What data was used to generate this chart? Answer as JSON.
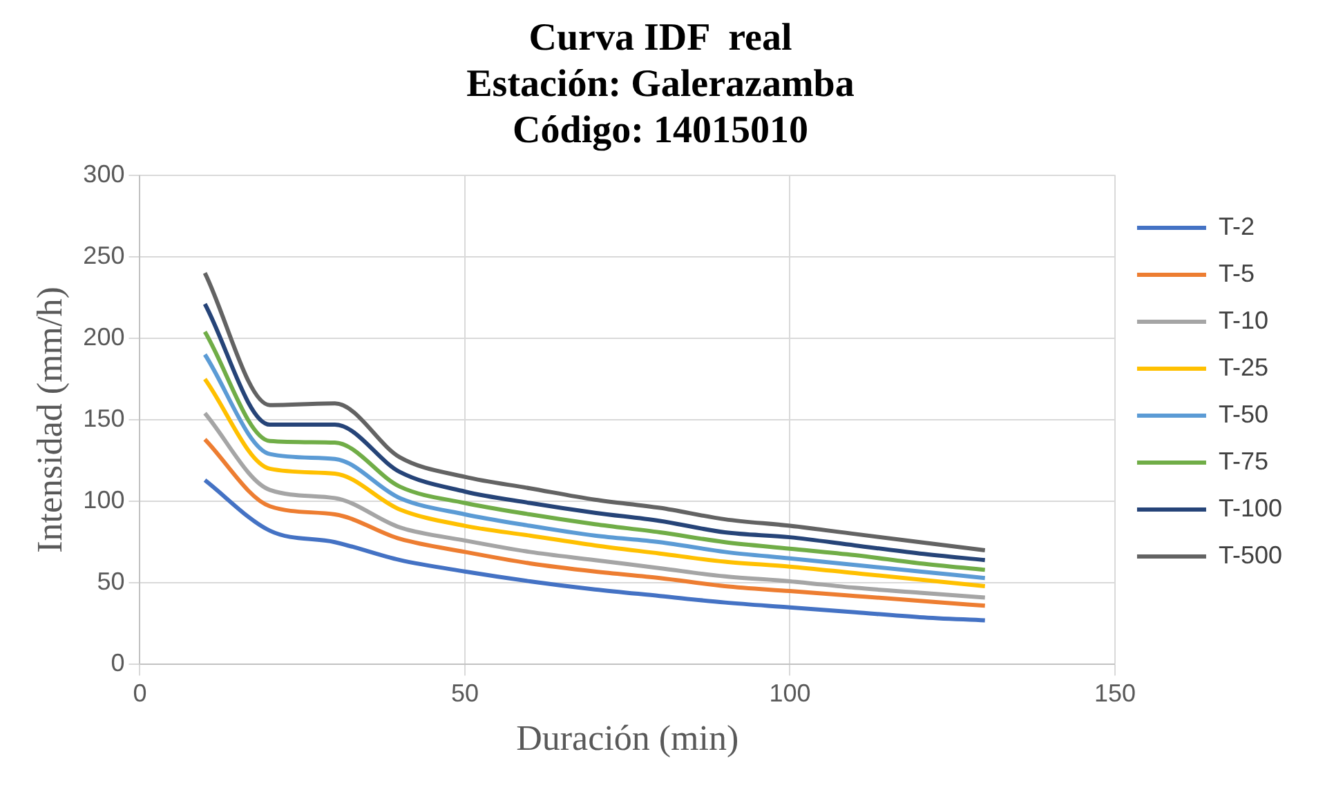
{
  "chart_data": {
    "type": "line",
    "title": [
      "Curva IDF  real",
      "Estación: Galerazamba",
      "Código: 14015010"
    ],
    "xlabel": "Duración (min)",
    "ylabel": "Intensidad (mm/h)",
    "x": [
      10,
      20,
      30,
      40,
      50,
      60,
      70,
      80,
      90,
      100,
      110,
      120,
      130
    ],
    "series": [
      {
        "name": "T-2",
        "color": "#4472c4",
        "values": [
          113,
          82,
          75,
          64,
          57,
          51,
          46,
          42,
          38,
          35,
          32,
          29,
          27
        ]
      },
      {
        "name": "T-5",
        "color": "#ed7d31",
        "values": [
          138,
          97,
          92,
          77,
          69,
          62,
          57,
          53,
          48,
          45,
          42,
          39,
          36
        ]
      },
      {
        "name": "T-10",
        "color": "#a5a5a5",
        "values": [
          154,
          107,
          102,
          84,
          76,
          69,
          64,
          59,
          54,
          51,
          47,
          44,
          41
        ]
      },
      {
        "name": "T-25",
        "color": "#ffc000",
        "values": [
          175,
          120,
          117,
          95,
          85,
          79,
          73,
          68,
          63,
          60,
          56,
          52,
          48
        ]
      },
      {
        "name": "T-50",
        "color": "#5b9bd5",
        "values": [
          190,
          129,
          126,
          102,
          92,
          85,
          79,
          75,
          69,
          65,
          61,
          57,
          53
        ]
      },
      {
        "name": "T-75",
        "color": "#70ad47",
        "values": [
          204,
          137,
          136,
          109,
          99,
          92,
          86,
          81,
          75,
          71,
          67,
          62,
          58
        ]
      },
      {
        "name": "T-100",
        "color": "#264478",
        "values": [
          221,
          147,
          147,
          118,
          106,
          99,
          93,
          88,
          81,
          78,
          73,
          68,
          64
        ]
      },
      {
        "name": "T-500",
        "color": "#636363",
        "values": [
          240,
          159,
          160,
          127,
          115,
          108,
          101,
          96,
          89,
          85,
          80,
          75,
          70
        ]
      }
    ],
    "xlim": [
      0,
      150
    ],
    "xticks": [
      0,
      50,
      100,
      150
    ],
    "ylim": [
      0,
      300
    ],
    "yticks": [
      0,
      50,
      100,
      150,
      200,
      250,
      300
    ],
    "grid": true,
    "legend": "right",
    "marker": "none",
    "line_style": "solid"
  }
}
